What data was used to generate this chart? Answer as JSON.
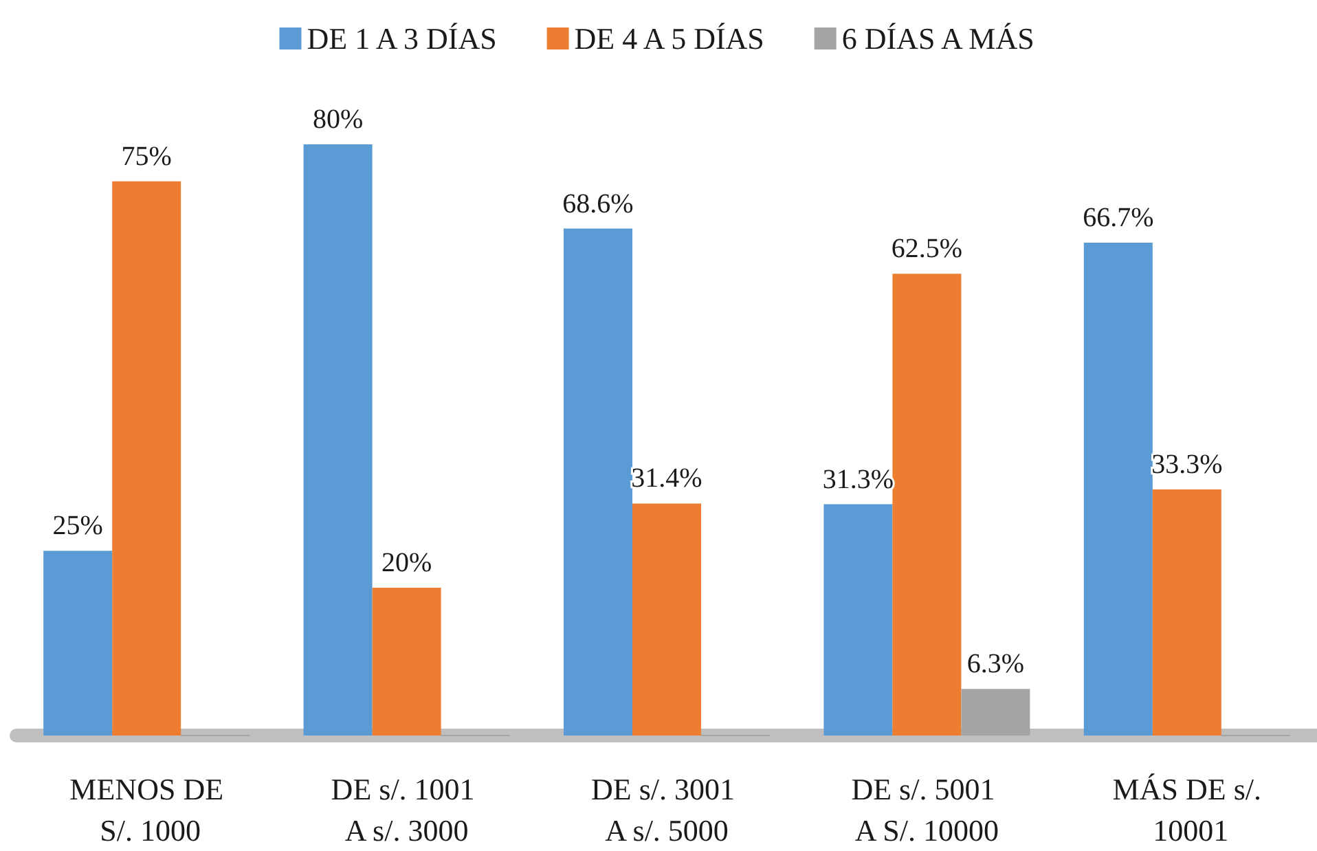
{
  "chart_data": {
    "type": "bar",
    "categories": [
      "MENOS DE S/. 1000",
      "DE s/. 1001 A s/. 3000",
      "DE s/. 3001 A s/. 5000",
      "DE s/. 5001 A S/. 10000",
      "MÁS DE s/. 10001"
    ],
    "series": [
      {
        "name": "DE 1 A 3 DÍAS",
        "color": "#5b9bd5",
        "values": [
          25,
          80,
          68.6,
          31.3,
          66.7
        ],
        "value_labels": [
          "25%",
          "80%",
          "68.6%",
          "31.3%",
          "66.7%"
        ]
      },
      {
        "name": "DE 4 A 5 DÍAS",
        "color": "#ed7d31",
        "values": [
          75,
          20,
          31.4,
          62.5,
          33.3
        ],
        "value_labels": [
          "75%",
          "20%",
          "31.4%",
          "62.5%",
          "33.3%"
        ]
      },
      {
        "name": "6 DÍAS A MÁS",
        "color": "#a5a5a5",
        "values": [
          0,
          0,
          0,
          6.3,
          0
        ],
        "value_labels": [
          null,
          null,
          null,
          "6.3%",
          null
        ]
      }
    ],
    "legend": "top",
    "grid": false
  }
}
